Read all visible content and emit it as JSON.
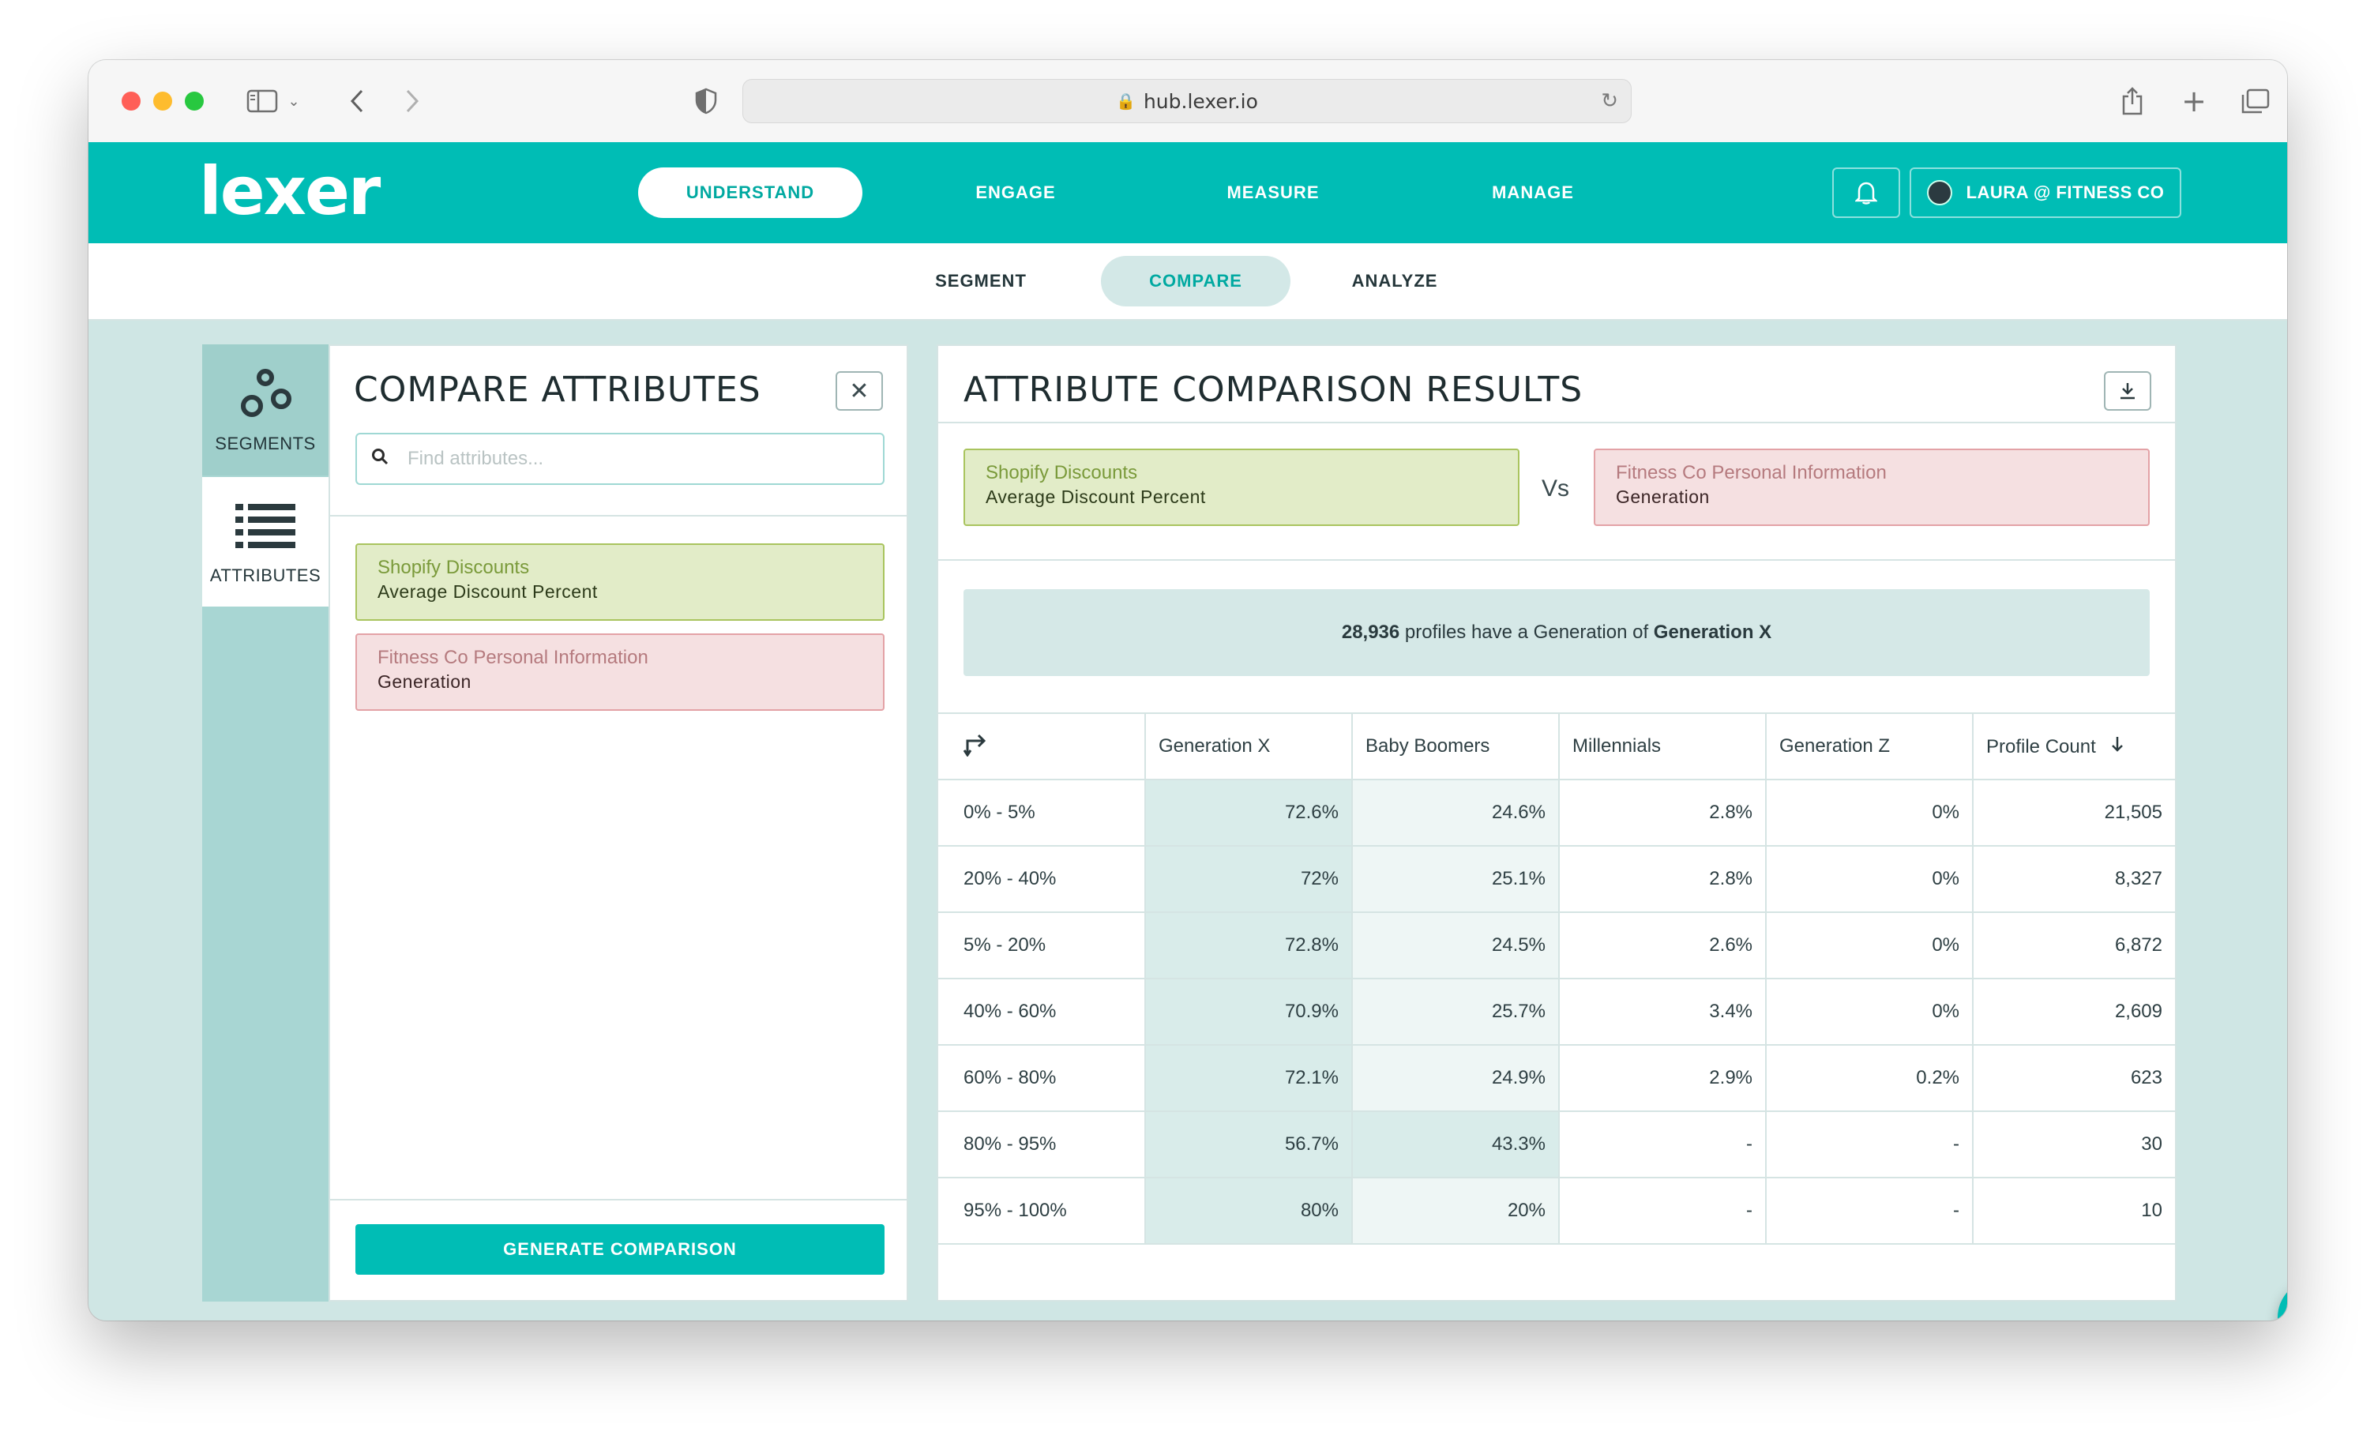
{
  "browser": {
    "url": "hub.lexer.io"
  },
  "nav": {
    "logo": "lexer",
    "items": [
      "UNDERSTAND",
      "ENGAGE",
      "MEASURE",
      "MANAGE"
    ],
    "user": "LAURA @ FITNESS CO"
  },
  "subnav": {
    "items": [
      "SEGMENT",
      "COMPARE",
      "ANALYZE"
    ]
  },
  "rail": {
    "segments_label": "SEGMENTS",
    "attributes_label": "ATTRIBUTES"
  },
  "compare_panel": {
    "title": "COMPARE ATTRIBUTES",
    "search_placeholder": "Find attributes...",
    "attribute_a": {
      "source": "Shopify Discounts",
      "name": "Average Discount Percent"
    },
    "attribute_b": {
      "source": "Fitness Co Personal Information",
      "name": "Generation"
    },
    "generate_label": "GENERATE COMPARISON"
  },
  "results_panel": {
    "title": "ATTRIBUTE COMPARISON RESULTS",
    "vs_label": "Vs",
    "summary": {
      "count": "28,936",
      "text_mid": " profiles have a Generation of ",
      "value": "Generation X"
    },
    "table": {
      "headers": [
        "Generation X",
        "Baby Boomers",
        "Millennials",
        "Generation Z",
        "Profile Count"
      ],
      "rows": [
        [
          "0% - 5%",
          "72.6%",
          "24.6%",
          "2.8%",
          "0%",
          "21,505"
        ],
        [
          "20% - 40%",
          "72%",
          "25.1%",
          "2.8%",
          "0%",
          "8,327"
        ],
        [
          "5% - 20%",
          "72.8%",
          "24.5%",
          "2.6%",
          "0%",
          "6,872"
        ],
        [
          "40% - 60%",
          "70.9%",
          "25.7%",
          "3.4%",
          "0%",
          "2,609"
        ],
        [
          "60% - 80%",
          "72.1%",
          "24.9%",
          "2.9%",
          "0.2%",
          "623"
        ],
        [
          "80% - 95%",
          "56.7%",
          "43.3%",
          "-",
          "-",
          "30"
        ],
        [
          "95% - 100%",
          "80%",
          "20%",
          "-",
          "-",
          "10"
        ]
      ]
    }
  }
}
